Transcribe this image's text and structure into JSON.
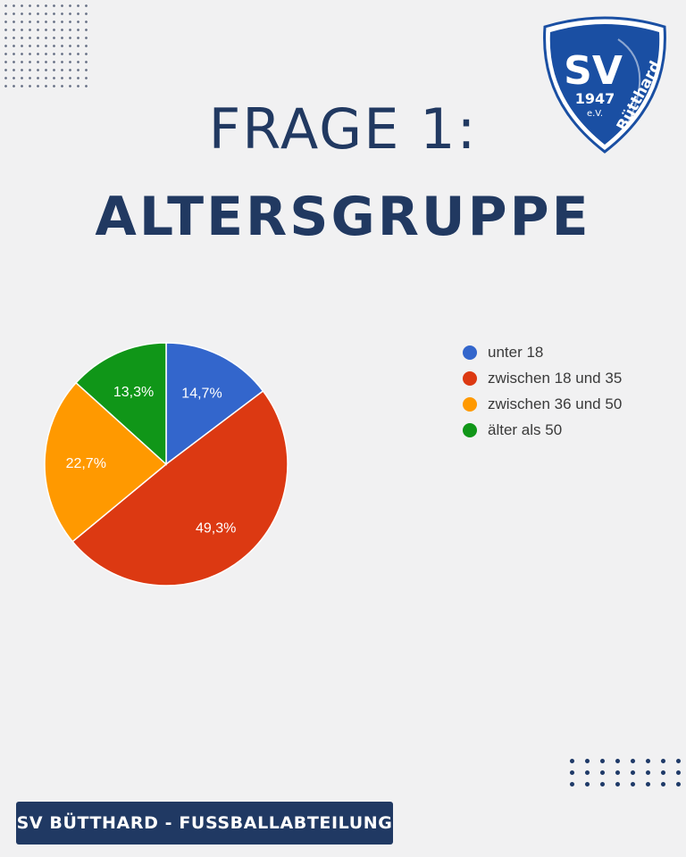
{
  "header": {
    "title_line1": "FRAGE 1:",
    "title_line2": "ALTERSGRUPPE"
  },
  "logo": {
    "text_main": "SV",
    "text_year": "1947",
    "text_ev": "e.V.",
    "text_place": "Bütthard",
    "colors": {
      "primary": "#1a4fa3",
      "outline": "#123a7a"
    }
  },
  "chart_data": {
    "type": "pie",
    "title": "",
    "categories": [
      "unter 18",
      "zwischen 18 und 35",
      "zwischen 36 und 50",
      "älter als 50"
    ],
    "values": [
      14.7,
      49.3,
      22.7,
      13.3
    ],
    "value_labels": [
      "14,7%",
      "49,3%",
      "22,7%",
      "13,3%"
    ],
    "colors": [
      "#3366cc",
      "#dc3912",
      "#ff9900",
      "#109618"
    ],
    "start_angle_deg": 90,
    "direction": "clockwise",
    "legend_position": "right"
  },
  "footer": {
    "label": "SV BÜTTHARD - FUSSBALLABTEILUNG"
  }
}
